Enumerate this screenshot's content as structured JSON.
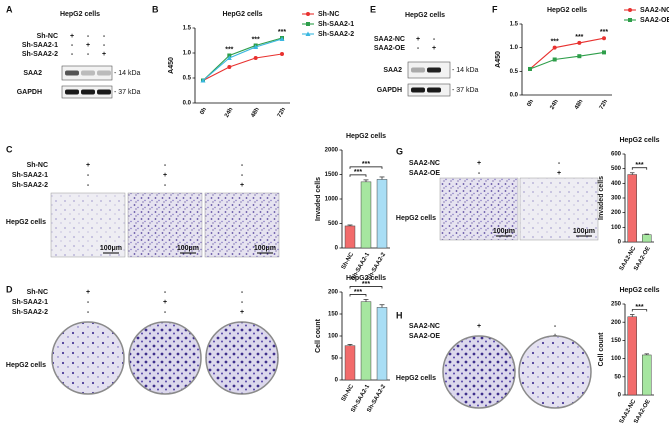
{
  "panel_labels": [
    "A",
    "B",
    "C",
    "D",
    "E",
    "F",
    "G",
    "H"
  ],
  "figure": {
    "A": {
      "title": "HepG2 cells",
      "rows": [
        {
          "name": "Sh-NC",
          "signs": [
            "+",
            "-",
            "-"
          ]
        },
        {
          "name": "Sh-SAA2-1",
          "signs": [
            "-",
            "+",
            "-"
          ]
        },
        {
          "name": "Sh-SAA2-2",
          "signs": [
            "-",
            "-",
            "+"
          ]
        }
      ],
      "blots": [
        {
          "name": "SAA2",
          "size": "- 14 kDa"
        },
        {
          "name": "GAPDH",
          "size": "- 37 kDa"
        }
      ]
    },
    "E": {
      "title": "HepG2 cells",
      "rows": [
        {
          "name": "SAA2-NC",
          "signs": [
            "+",
            "-"
          ]
        },
        {
          "name": "SAA2-OE",
          "signs": [
            "-",
            "+"
          ]
        }
      ],
      "blots": [
        {
          "name": "SAA2",
          "size": "- 14 kDa"
        },
        {
          "name": "GAPDH",
          "size": "- 37 kDa"
        }
      ]
    },
    "C": {
      "rows": [
        {
          "name": "Sh-NC",
          "signs": [
            "+",
            "-",
            "-"
          ]
        },
        {
          "name": "Sh-SAA2-1",
          "signs": [
            "-",
            "+",
            "-"
          ]
        },
        {
          "name": "Sh-SAA2-2",
          "signs": [
            "-",
            "-",
            "+"
          ]
        }
      ],
      "cell": "HepG2 cells",
      "scale": "100μm"
    },
    "G": {
      "rows": [
        {
          "name": "SAA2-NC",
          "signs": [
            "+",
            "-"
          ]
        },
        {
          "name": "SAA2-OE",
          "signs": [
            "-",
            "+"
          ]
        }
      ],
      "cell": "HepG2 cells",
      "scale": "100μm"
    },
    "D": {
      "rows": [
        {
          "name": "Sh-NC",
          "signs": [
            "+",
            "-",
            "-"
          ]
        },
        {
          "name": "Sh-SAA2-1",
          "signs": [
            "-",
            "+",
            "-"
          ]
        },
        {
          "name": "Sh-SAA2-2",
          "signs": [
            "-",
            "-",
            "+"
          ]
        }
      ],
      "cell": "HepG2 cells"
    },
    "H": {
      "rows": [
        {
          "name": "SAA2-NC",
          "signs": [
            "+",
            "-"
          ]
        },
        {
          "name": "SAA2-OE",
          "signs": [
            "-",
            "+"
          ]
        }
      ],
      "cell": "HepG2 cells"
    }
  },
  "chart_data": [
    {
      "type": "line",
      "title": "HepG2 cells",
      "y_label": "A450",
      "categories": [
        "0h",
        "24h",
        "48h",
        "72h"
      ],
      "series": [
        {
          "name": "Sh-NC",
          "color": "#e8312f",
          "marker": "circle",
          "values": [
            0.45,
            0.72,
            0.9,
            0.98
          ]
        },
        {
          "name": "Sh-SAA2-1",
          "color": "#2e9e4a",
          "marker": "square",
          "values": [
            0.45,
            0.95,
            1.15,
            1.3
          ]
        },
        {
          "name": "Sh-SAA2-2",
          "color": "#3ab7e0",
          "marker": "triangle",
          "values": [
            0.45,
            0.9,
            1.12,
            1.28
          ]
        }
      ],
      "ylim": [
        0,
        1.5
      ],
      "yticks": [
        {
          "value": 0,
          "label": "0.0"
        },
        {
          "value": 0.5,
          "label": "0.5"
        },
        {
          "value": 1,
          "label": "1.0"
        },
        {
          "value": 1.5,
          "label": "1.5"
        }
      ],
      "annotations": [
        {
          "text": "***",
          "x": "24h"
        },
        {
          "text": "***",
          "x": "48h"
        },
        {
          "text": "***",
          "x": "72h"
        }
      ]
    },
    {
      "type": "line",
      "title": "HepG2 cells",
      "y_label": "A450",
      "categories": [
        "0h",
        "24h",
        "48h",
        "72h"
      ],
      "series": [
        {
          "name": "SAA2-NC",
          "color": "#e8312f",
          "marker": "circle",
          "values": [
            0.55,
            1.0,
            1.1,
            1.2
          ]
        },
        {
          "name": "SAA2-OE",
          "color": "#2e9e4a",
          "marker": "square",
          "values": [
            0.55,
            0.75,
            0.82,
            0.9
          ]
        }
      ],
      "ylim": [
        0,
        1.5
      ],
      "yticks": [
        {
          "value": 0,
          "label": "0.0"
        },
        {
          "value": 0.5,
          "label": "0.5"
        },
        {
          "value": 1,
          "label": "1.0"
        },
        {
          "value": 1.5,
          "label": "1.5"
        }
      ],
      "annotations": [
        {
          "text": "***",
          "x": "24h"
        },
        {
          "text": "***",
          "x": "48h"
        },
        {
          "text": "***",
          "x": "72h"
        }
      ]
    },
    {
      "type": "bar",
      "title": "HepG2 cells",
      "y_label": "Invaded cells",
      "categories": [
        "Sh-NC",
        "Sh-SAA2-1",
        "Sh-SAA2-2"
      ],
      "values": [
        450,
        1350,
        1400
      ],
      "errors": [
        20,
        40,
        50
      ],
      "colors": [
        "#f26b6b",
        "#a6e6a0",
        "#a9def5"
      ],
      "ylim": [
        0,
        2000
      ],
      "yticks": [
        0,
        500,
        1000,
        1500,
        2000
      ],
      "significance": [
        {
          "text": "***",
          "from": "Sh-NC",
          "to": "Sh-SAA2-1"
        },
        {
          "text": "***",
          "from": "Sh-NC",
          "to": "Sh-SAA2-2"
        }
      ]
    },
    {
      "type": "bar",
      "title": "HepG2 cells",
      "y_label": "Invaded cells",
      "categories": [
        "SAA2-NC",
        "SAA2-OE"
      ],
      "values": [
        460,
        50
      ],
      "errors": [
        12,
        4
      ],
      "colors": [
        "#f26b6b",
        "#a6e6a0"
      ],
      "ylim": [
        0,
        600
      ],
      "yticks": [
        0,
        100,
        200,
        300,
        400,
        500,
        600
      ],
      "significance": [
        {
          "text": "***",
          "from": "SAA2-NC",
          "to": "SAA2-OE"
        }
      ]
    },
    {
      "type": "bar",
      "title": "HepG2 cells",
      "y_label": "Cell count",
      "categories": [
        "Sh-NC",
        "Sh-SAA2-1",
        "Sh-SAA2-2"
      ],
      "values": [
        78,
        178,
        165
      ],
      "errors": [
        3,
        5,
        6
      ],
      "colors": [
        "#f26b6b",
        "#a6e6a0",
        "#a9def5"
      ],
      "ylim": [
        0,
        200
      ],
      "yticks": [
        0,
        50,
        100,
        150,
        200
      ],
      "significance": [
        {
          "text": "***",
          "from": "Sh-NC",
          "to": "Sh-SAA2-1"
        },
        {
          "text": "***",
          "from": "Sh-NC",
          "to": "Sh-SAA2-2"
        }
      ]
    },
    {
      "type": "bar",
      "title": "HepG2 cells",
      "y_label": "Cell count",
      "categories": [
        "SAA2-NC",
        "SAA2-OE"
      ],
      "values": [
        215,
        110
      ],
      "errors": [
        6,
        3
      ],
      "colors": [
        "#f26b6b",
        "#a6e6a0"
      ],
      "ylim": [
        0,
        250
      ],
      "yticks": [
        0,
        50,
        100,
        150,
        200,
        250
      ],
      "significance": [
        {
          "text": "***",
          "from": "SAA2-NC",
          "to": "SAA2-OE"
        }
      ]
    }
  ]
}
